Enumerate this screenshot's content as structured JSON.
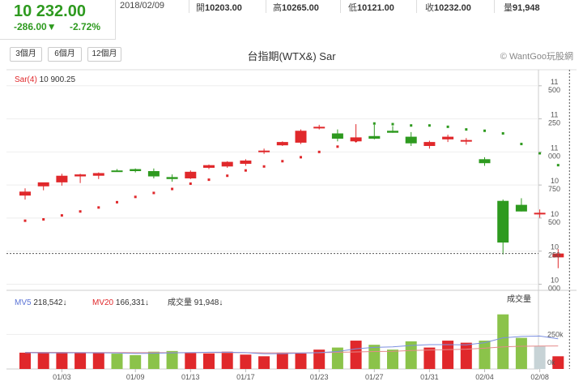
{
  "quote": {
    "price": "10 232.00",
    "change": "-286.00▼",
    "change_pct": "-2.72%",
    "date": "2018/02/09",
    "open_label": "開",
    "open": "10203.00",
    "high_label": "高",
    "high": "10265.00",
    "low_label": "低",
    "low": "10121.00",
    "close_label": "收",
    "close": "10232.00",
    "volume_label": "量",
    "volume": "91,948",
    "colors": {
      "down": "#2e9a1f",
      "up": "#e0282b"
    }
  },
  "range_buttons": [
    "3個月",
    "6個月",
    "12個月"
  ],
  "chart_title": "台指期(WTX&) Sar",
  "brand": "© WantGoo玩股網",
  "price_panel": {
    "sar_label": "Sar(4)",
    "sar_value": "10 900.25",
    "y_ticks": [
      {
        "v": 11500,
        "label": [
          "11",
          "500"
        ]
      },
      {
        "v": 11250,
        "label": [
          "11",
          "250"
        ]
      },
      {
        "v": 11000,
        "label": [
          "11",
          "000"
        ]
      },
      {
        "v": 10750,
        "label": [
          "10",
          "750"
        ]
      },
      {
        "v": 10500,
        "label": [
          "10",
          "500"
        ]
      },
      {
        "v": 10250,
        "label": [
          "10",
          "250"
        ]
      },
      {
        "v": 10000,
        "label": [
          "10",
          "000"
        ]
      }
    ],
    "ref_line": 10232
  },
  "volume_panel": {
    "mv5_label": "MV5",
    "mv5_value": "218,542↓",
    "mv20_label": "MV20",
    "mv20_value": "166,331↓",
    "vol_label": "成交量",
    "vol_value": "91,948↓",
    "axis_title": "成交量",
    "y_ticks": [
      {
        "v": 250000,
        "label": "250k"
      },
      {
        "v": 0,
        "label": "0k"
      }
    ]
  },
  "x_ticks": [
    {
      "i": 2,
      "label": "01/03"
    },
    {
      "i": 6,
      "label": "01/09"
    },
    {
      "i": 9,
      "label": "01/13"
    },
    {
      "i": 12,
      "label": "01/17"
    },
    {
      "i": 16,
      "label": "01/23"
    },
    {
      "i": 19,
      "label": "01/27"
    },
    {
      "i": 22,
      "label": "01/31"
    },
    {
      "i": 25,
      "label": "02/04"
    },
    {
      "i": 28,
      "label": "02/08"
    }
  ],
  "chart_data": {
    "type": "candlestick",
    "title": "台指期(WTX&) Sar",
    "ylim": [
      9960,
      11560
    ],
    "candles": [
      {
        "o": 10670,
        "h": 10725,
        "l": 10640,
        "c": 10700,
        "v": 118000,
        "sar": 10480
      },
      {
        "o": 10740,
        "h": 10760,
        "l": 10710,
        "c": 10770,
        "v": 120000,
        "sar": 10490
      },
      {
        "o": 10770,
        "h": 10835,
        "l": 10745,
        "c": 10820,
        "v": 118000,
        "sar": 10520
      },
      {
        "o": 10815,
        "h": 10835,
        "l": 10765,
        "c": 10830,
        "v": 116000,
        "sar": 10550
      },
      {
        "o": 10820,
        "h": 10845,
        "l": 10795,
        "c": 10840,
        "v": 115000,
        "sar": 10580
      },
      {
        "o": 10860,
        "h": 10870,
        "l": 10850,
        "c": 10855,
        "v": 111000,
        "sar": 10620
      },
      {
        "o": 10870,
        "h": 10875,
        "l": 10845,
        "c": 10855,
        "v": 100000,
        "sar": 10660
      },
      {
        "o": 10855,
        "h": 10875,
        "l": 10800,
        "c": 10815,
        "v": 125000,
        "sar": 10690
      },
      {
        "o": 10810,
        "h": 10830,
        "l": 10775,
        "c": 10795,
        "v": 130000,
        "sar": 10720
      },
      {
        "o": 10800,
        "h": 10860,
        "l": 10795,
        "c": 10850,
        "v": 115000,
        "sar": 10760
      },
      {
        "o": 10880,
        "h": 10905,
        "l": 10870,
        "c": 10900,
        "v": 112000,
        "sar": 10790
      },
      {
        "o": 10890,
        "h": 10930,
        "l": 10880,
        "c": 10925,
        "v": 125000,
        "sar": 10820
      },
      {
        "o": 10910,
        "h": 10945,
        "l": 10895,
        "c": 10935,
        "v": 104000,
        "sar": 10860
      },
      {
        "o": 11000,
        "h": 11025,
        "l": 10985,
        "c": 11010,
        "v": 92000,
        "sar": 10890
      },
      {
        "o": 11050,
        "h": 11080,
        "l": 11045,
        "c": 11075,
        "v": 118000,
        "sar": 10930
      },
      {
        "o": 11070,
        "h": 11170,
        "l": 11060,
        "c": 11160,
        "v": 112000,
        "sar": 10960
      },
      {
        "o": 11180,
        "h": 11205,
        "l": 11170,
        "c": 11190,
        "v": 140000,
        "sar": 11000
      },
      {
        "o": 11140,
        "h": 11170,
        "l": 11080,
        "c": 11100,
        "v": 155000,
        "sar": 11040
      },
      {
        "o": 11080,
        "h": 11210,
        "l": 11070,
        "c": 11110,
        "v": 205000,
        "sar": 11085
      },
      {
        "o": 11120,
        "h": 11205,
        "l": 11095,
        "c": 11100,
        "v": 175000,
        "sar": 11215
      },
      {
        "o": 11160,
        "h": 11195,
        "l": 11145,
        "c": 11145,
        "v": 140000,
        "sar": 11210
      },
      {
        "o": 11115,
        "h": 11150,
        "l": 11045,
        "c": 11065,
        "v": 200000,
        "sar": 11200
      },
      {
        "o": 11045,
        "h": 11085,
        "l": 11025,
        "c": 11075,
        "v": 155000,
        "sar": 11200
      },
      {
        "o": 11095,
        "h": 11130,
        "l": 11075,
        "c": 11115,
        "v": 205000,
        "sar": 11190
      },
      {
        "o": 11085,
        "h": 11105,
        "l": 11055,
        "c": 11090,
        "v": 190000,
        "sar": 11170
      },
      {
        "o": 10945,
        "h": 10960,
        "l": 10895,
        "c": 10915,
        "v": 205000,
        "sar": 11160
      },
      {
        "o": 10630,
        "h": 10640,
        "l": 10225,
        "c": 10315,
        "v": 395000,
        "sar": 11140
      },
      {
        "o": 10600,
        "h": 10650,
        "l": 10550,
        "c": 10550,
        "v": 225000,
        "sar": 11060
      },
      {
        "o": 10540,
        "h": 10565,
        "l": 10500,
        "c": 10540,
        "v": 165000,
        "sar": 10990
      },
      {
        "o": 10203,
        "h": 10265,
        "l": 10121,
        "c": 10232,
        "v": 91948,
        "sar": 10900
      }
    ],
    "mv5": [
      118000,
      117000,
      117000,
      117500,
      117000,
      116000,
      112000,
      114000,
      117000,
      118000,
      121000,
      121000,
      118000,
      110000,
      111000,
      115000,
      118000,
      126000,
      146000,
      156000,
      160000,
      170000,
      176000,
      176000,
      174000,
      190000,
      225000,
      235000,
      238000,
      218542
    ],
    "mv20": [
      120000,
      120000,
      120000,
      119000,
      119000,
      119000,
      118000,
      118000,
      118000,
      118000,
      118000,
      118000,
      118000,
      117000,
      117000,
      117000,
      118000,
      120000,
      123000,
      126000,
      128000,
      133000,
      137000,
      140000,
      143000,
      150000,
      160000,
      164000,
      166000,
      166331
    ]
  }
}
